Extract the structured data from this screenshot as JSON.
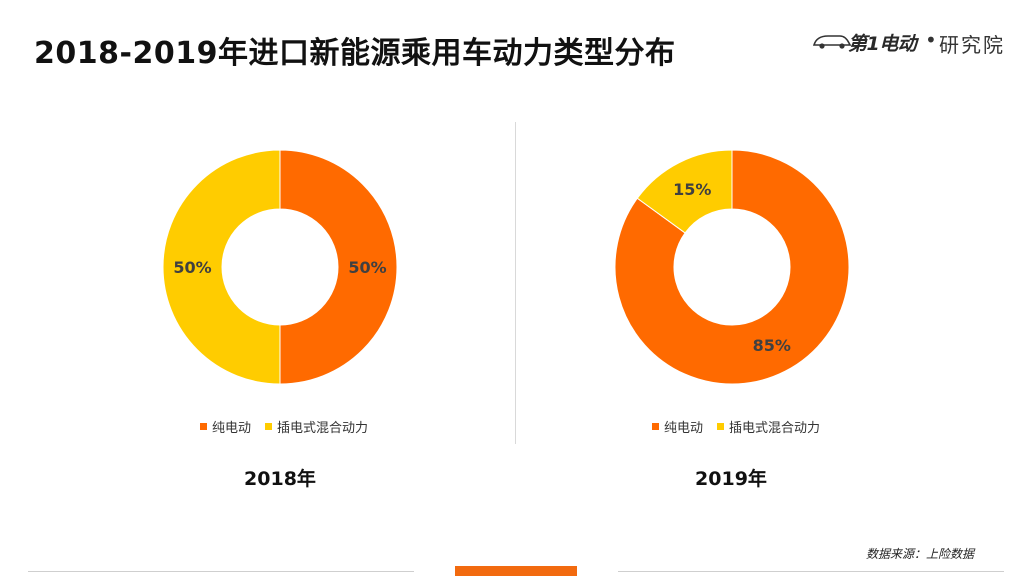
{
  "title": "2018-2019年进口新能源乘用车动力类型分布",
  "logo": {
    "brand": "第1电动",
    "separator": "•",
    "suffix": "研究院"
  },
  "colors": {
    "pure_electric": "#ff6a00",
    "plug_in_hybrid": "#ffcc00",
    "accent": "#f26a0f"
  },
  "chart_data": [
    {
      "type": "pie",
      "donut": true,
      "title": "2018年",
      "categories": [
        "纯电动",
        "插电式混合动力"
      ],
      "values": [
        50,
        50
      ],
      "data_labels": [
        "50%",
        "50%"
      ],
      "legend": "bottom"
    },
    {
      "type": "pie",
      "donut": true,
      "title": "2019年",
      "categories": [
        "纯电动",
        "插电式混合动力"
      ],
      "values": [
        85,
        15
      ],
      "data_labels": [
        "85%",
        "15%"
      ],
      "legend": "bottom"
    }
  ],
  "source": "数据来源：上险数据"
}
